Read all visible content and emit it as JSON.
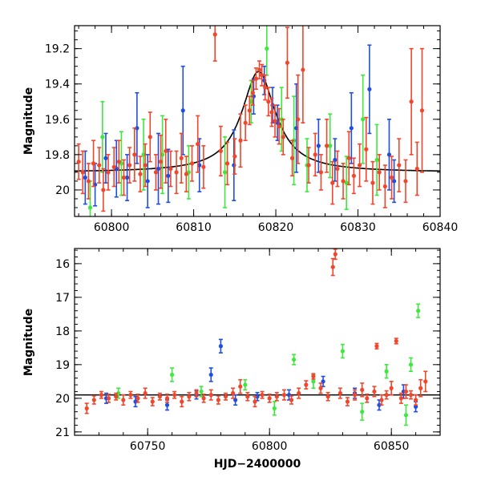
{
  "colors": {
    "blue": "#1f4fe0",
    "green": "#3ee83e",
    "red": "#f2462c",
    "model": "#000000"
  },
  "chart_data": [
    {
      "type": "scatter",
      "ylabel": "Magnitude",
      "xlabel": "",
      "xlim": [
        60795.5,
        60840
      ],
      "ylim": [
        20.15,
        19.07
      ],
      "y_inverted": true,
      "xticks": [
        60800,
        60810,
        60820,
        60830,
        60840
      ],
      "yticks": [
        19.2,
        19.4,
        19.6,
        19.8,
        20
      ],
      "ytick_labels": [
        "19.2",
        "19.4",
        "19.6",
        "19.8",
        "20"
      ],
      "model": {
        "baseline": 19.9,
        "peak_mag": 19.33,
        "peak_time": 60817.9,
        "tE": 2.2
      },
      "series": [
        {
          "color": "red",
          "points": [
            [
              60796.0,
              19.84,
              0.1
            ],
            [
              60796.5,
              19.9,
              0.12
            ],
            [
              60797.2,
              19.95,
              0.1
            ],
            [
              60797.8,
              19.85,
              0.13
            ],
            [
              60798.5,
              19.86,
              0.1
            ],
            [
              60799.0,
              20.0,
              0.12
            ],
            [
              60799.6,
              19.9,
              0.1
            ],
            [
              60800.3,
              19.87,
              0.11
            ],
            [
              60800.9,
              19.84,
              0.12
            ],
            [
              60801.5,
              19.93,
              0.1
            ],
            [
              60802.2,
              19.86,
              0.1
            ],
            [
              60802.8,
              19.8,
              0.15
            ],
            [
              60803.5,
              19.91,
              0.1
            ],
            [
              60804.1,
              19.86,
              0.12
            ],
            [
              60804.7,
              19.7,
              0.14
            ],
            [
              60805.4,
              19.9,
              0.1
            ],
            [
              60806.0,
              19.84,
              0.15
            ],
            [
              60806.6,
              19.78,
              0.18
            ],
            [
              60807.2,
              19.88,
              0.1
            ],
            [
              60807.9,
              19.9,
              0.12
            ],
            [
              60808.5,
              19.82,
              0.14
            ],
            [
              60809.1,
              19.91,
              0.1
            ],
            [
              60809.8,
              19.85,
              0.1
            ],
            [
              60810.5,
              19.74,
              0.16
            ],
            [
              60811.2,
              19.87,
              0.12
            ],
            [
              60812.6,
              19.12,
              0.15
            ],
            [
              60813.3,
              19.78,
              0.14
            ],
            [
              60814.1,
              19.85,
              0.12
            ],
            [
              60815.0,
              19.81,
              0.1
            ],
            [
              60815.7,
              19.72,
              0.15
            ],
            [
              60816.3,
              19.62,
              0.1
            ],
            [
              60816.8,
              19.55,
              0.08
            ],
            [
              60817.2,
              19.45,
              0.07
            ],
            [
              60817.6,
              19.37,
              0.06
            ],
            [
              60818.0,
              19.32,
              0.05
            ],
            [
              60818.3,
              19.35,
              0.06
            ],
            [
              60818.7,
              19.42,
              0.07
            ],
            [
              60819.1,
              19.5,
              0.08
            ],
            [
              60819.5,
              19.56,
              0.08
            ],
            [
              60819.9,
              19.61,
              0.09
            ],
            [
              60820.4,
              19.64,
              0.1
            ],
            [
              60820.9,
              19.7,
              0.1
            ],
            [
              60821.4,
              19.28,
              0.2
            ],
            [
              60822.0,
              19.82,
              0.1
            ],
            [
              60822.7,
              19.6,
              0.25
            ],
            [
              60823.3,
              19.32,
              0.3
            ],
            [
              60824.0,
              19.86,
              0.1
            ],
            [
              60824.8,
              19.8,
              0.12
            ],
            [
              60825.5,
              19.9,
              0.1
            ],
            [
              60826.2,
              19.75,
              0.15
            ],
            [
              60826.9,
              19.96,
              0.12
            ],
            [
              60827.5,
              19.88,
              0.1
            ],
            [
              60828.2,
              19.95,
              0.1
            ],
            [
              60828.9,
              19.82,
              0.15
            ],
            [
              60829.5,
              19.92,
              0.1
            ],
            [
              60830.2,
              19.86,
              0.12
            ],
            [
              60831.0,
              19.77,
              0.18
            ],
            [
              60831.8,
              19.96,
              0.12
            ],
            [
              60832.6,
              19.9,
              0.1
            ],
            [
              60833.3,
              19.98,
              0.12
            ],
            [
              60834.1,
              19.93,
              0.12
            ],
            [
              60835.0,
              19.86,
              0.15
            ],
            [
              60835.8,
              19.95,
              0.12
            ],
            [
              60836.5,
              19.5,
              0.3
            ],
            [
              60837.2,
              19.88,
              0.15
            ],
            [
              60837.8,
              19.55,
              0.35
            ]
          ]
        },
        {
          "color": "blue",
          "points": [
            [
              60796.8,
              19.93,
              0.15
            ],
            [
              60798.0,
              19.97,
              0.12
            ],
            [
              60799.3,
              19.82,
              0.14
            ],
            [
              60800.6,
              19.88,
              0.16
            ],
            [
              60801.9,
              19.93,
              0.13
            ],
            [
              60803.1,
              19.65,
              0.2
            ],
            [
              60804.4,
              19.95,
              0.15
            ],
            [
              60805.7,
              19.88,
              0.2
            ],
            [
              60806.9,
              19.92,
              0.15
            ],
            [
              60808.7,
              19.55,
              0.25
            ],
            [
              60810.7,
              19.86,
              0.15
            ],
            [
              60814.9,
              19.86,
              0.2
            ],
            [
              60817.3,
              19.47,
              0.1
            ],
            [
              60818.6,
              19.38,
              0.08
            ],
            [
              60819.6,
              19.52,
              0.1
            ],
            [
              60820.2,
              19.62,
              0.1
            ],
            [
              60822.5,
              19.65,
              0.25
            ],
            [
              60825.2,
              19.75,
              0.15
            ],
            [
              60827.2,
              19.83,
              0.12
            ],
            [
              60829.2,
              19.65,
              0.2
            ],
            [
              60831.4,
              19.43,
              0.25
            ],
            [
              60833.8,
              19.8,
              0.2
            ],
            [
              60834.4,
              19.95,
              0.12
            ]
          ]
        },
        {
          "color": "green",
          "points": [
            [
              60797.4,
              20.1,
              0.15
            ],
            [
              60798.9,
              19.7,
              0.2
            ],
            [
              60801.2,
              19.85,
              0.18
            ],
            [
              60803.9,
              19.8,
              0.2
            ],
            [
              60806.2,
              19.8,
              0.22
            ],
            [
              60809.4,
              19.9,
              0.15
            ],
            [
              60813.8,
              19.9,
              0.2
            ],
            [
              60817.0,
              19.5,
              0.12
            ],
            [
              60818.9,
              19.2,
              0.15
            ],
            [
              60820.7,
              19.6,
              0.18
            ],
            [
              60822.2,
              19.72,
              0.25
            ],
            [
              60823.8,
              19.86,
              0.15
            ],
            [
              60826.6,
              19.75,
              0.18
            ],
            [
              60828.6,
              19.96,
              0.15
            ],
            [
              60830.6,
              19.6,
              0.25
            ],
            [
              60832.3,
              19.83,
              0.2
            ]
          ]
        }
      ]
    },
    {
      "type": "scatter",
      "ylabel": "Magnitude",
      "xlabel": "HJD−2400000",
      "xlim": [
        60720,
        60870
      ],
      "ylim": [
        21.1,
        15.55
      ],
      "y_inverted": true,
      "xticks": [
        60750,
        60800,
        60850
      ],
      "yticks": [
        16,
        17,
        18,
        19,
        20,
        21
      ],
      "ytick_labels": [
        "16",
        "17",
        "18",
        "19",
        "20",
        "21"
      ],
      "baseline_mag": 19.9,
      "series": [
        {
          "color": "red",
          "points": [
            [
              60725,
              20.3,
              0.15
            ],
            [
              60728,
              20.05,
              0.12
            ],
            [
              60731,
              19.9,
              0.1
            ],
            [
              60734,
              20.0,
              0.12
            ],
            [
              60737,
              19.95,
              0.1
            ],
            [
              60740,
              20.05,
              0.15
            ],
            [
              60743,
              19.9,
              0.1
            ],
            [
              60746,
              20.0,
              0.12
            ],
            [
              60749,
              19.85,
              0.15
            ],
            [
              60752,
              20.1,
              0.12
            ],
            [
              60755,
              19.95,
              0.1
            ],
            [
              60758,
              20.0,
              0.12
            ],
            [
              60761,
              19.9,
              0.1
            ],
            [
              60764,
              20.1,
              0.15
            ],
            [
              60767,
              19.95,
              0.12
            ],
            [
              60770,
              19.85,
              0.1
            ],
            [
              60773,
              20.0,
              0.12
            ],
            [
              60776,
              19.9,
              0.15
            ],
            [
              60779,
              20.05,
              0.12
            ],
            [
              60782,
              19.95,
              0.1
            ],
            [
              60785,
              19.85,
              0.15
            ],
            [
              60788,
              19.65,
              0.2
            ],
            [
              60791,
              19.95,
              0.12
            ],
            [
              60794,
              20.1,
              0.15
            ],
            [
              60797,
              19.9,
              0.1
            ],
            [
              60800,
              20.0,
              0.12
            ],
            [
              60803,
              19.95,
              0.12
            ],
            [
              60806,
              19.9,
              0.15
            ],
            [
              60809,
              20.05,
              0.12
            ],
            [
              60812,
              19.85,
              0.15
            ],
            [
              60815,
              19.6,
              0.12
            ],
            [
              60818,
              19.35,
              0.08
            ],
            [
              60821,
              19.7,
              0.15
            ],
            [
              60824,
              19.95,
              0.12
            ],
            [
              60826,
              16.1,
              0.25
            ],
            [
              60827,
              15.72,
              0.15
            ],
            [
              60829,
              19.85,
              0.15
            ],
            [
              60832,
              20.1,
              0.12
            ],
            [
              60835,
              19.9,
              0.15
            ],
            [
              60838,
              19.75,
              0.2
            ],
            [
              60840,
              20.0,
              0.12
            ],
            [
              60843,
              19.8,
              0.15
            ],
            [
              60844,
              18.45,
              0.08
            ],
            [
              60846,
              20.05,
              0.15
            ],
            [
              60848,
              19.9,
              0.12
            ],
            [
              60850,
              19.7,
              0.2
            ],
            [
              60852,
              18.3,
              0.08
            ],
            [
              60854,
              20.0,
              0.15
            ],
            [
              60856,
              19.8,
              0.2
            ],
            [
              60858,
              19.9,
              0.12
            ],
            [
              60860,
              20.05,
              0.15
            ],
            [
              60862,
              19.7,
              0.25
            ],
            [
              60864,
              19.5,
              0.3
            ]
          ]
        },
        {
          "color": "blue",
          "points": [
            [
              60733,
              20.0,
              0.15
            ],
            [
              60745,
              20.1,
              0.15
            ],
            [
              60758,
              20.2,
              0.15
            ],
            [
              60770,
              19.9,
              0.12
            ],
            [
              60776,
              19.3,
              0.2
            ],
            [
              60780,
              18.45,
              0.2
            ],
            [
              60786,
              20.05,
              0.15
            ],
            [
              60795,
              19.95,
              0.12
            ],
            [
              60808,
              19.9,
              0.15
            ],
            [
              60822,
              19.5,
              0.15
            ],
            [
              60835,
              19.85,
              0.15
            ],
            [
              60845,
              20.2,
              0.15
            ],
            [
              60855,
              19.8,
              0.2
            ],
            [
              60860,
              20.25,
              0.15
            ]
          ]
        },
        {
          "color": "green",
          "points": [
            [
              60738,
              19.85,
              0.15
            ],
            [
              60760,
              19.3,
              0.2
            ],
            [
              60772,
              19.8,
              0.15
            ],
            [
              60790,
              19.6,
              0.15
            ],
            [
              60802,
              20.3,
              0.2
            ],
            [
              60810,
              18.85,
              0.15
            ],
            [
              60818,
              19.5,
              0.2
            ],
            [
              60830,
              18.6,
              0.2
            ],
            [
              60838,
              20.4,
              0.25
            ],
            [
              60848,
              19.2,
              0.2
            ],
            [
              60856,
              20.5,
              0.3
            ],
            [
              60858,
              19.0,
              0.2
            ],
            [
              60861,
              17.4,
              0.2
            ]
          ]
        }
      ]
    }
  ]
}
